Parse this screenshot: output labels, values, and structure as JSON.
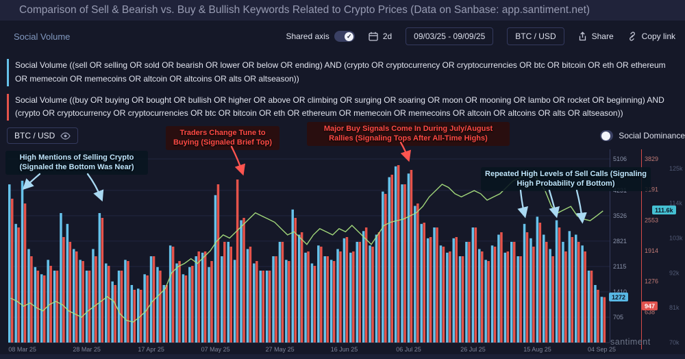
{
  "header": {
    "title": "Comparison of Sell & Bearish vs. Buy & Bullish Keywords Related to Crypto Prices (Data on Sanbase: app.santiment.net)"
  },
  "toolbar": {
    "metric_label": "Social Volume",
    "shared_axis_label": "Shared axis",
    "interval_label": "2d",
    "date_range": "09/03/25 - 09/09/25",
    "pair_label": "BTC / USD",
    "share_label": "Share",
    "copy_link_label": "Copy link"
  },
  "legend": {
    "sell": "Social Volume ((sell OR selling OR sold OR bearish OR lower OR below OR ending) AND (crypto OR cryptocurrency OR cryptocurrencies OR btc OR bitcoin OR eth OR ethereum OR memecoin OR memecoins OR altcoin OR altcoins OR alts OR altseason))",
    "buy": "Social Volume ((buy OR buying OR bought OR bullish OR higher OR above OR climbing OR surging OR soaring OR moon OR mooning OR lambo OR rocket OR beginning) AND (crypto OR cryptocurrency OR cryptocurrencies OR btc OR bitcoin OR eth OR ethereum OR memecoin OR memecoins OR altcoin OR altcoins OR alts OR altseason))"
  },
  "controls": {
    "asset_button": "BTC / USD",
    "social_dominance_label": "Social Dominance"
  },
  "annotations": [
    {
      "text": "High Mentions of Selling Crypto (Signaled the Bottom Was Near)",
      "color": "#bfe7ff"
    },
    {
      "text": "Traders Change Tune to Buying (Signaled Brief Top)",
      "color": "#ff4a44"
    },
    {
      "text": "Major Buy Signals Come In During July/August Rallies (Signaling Tops After All-Time Highs)",
      "color": "#ff4a44"
    },
    {
      "text": "Repeated High Levels of Sell Calls (Signaling High Probability of Bottom)",
      "color": "#bfe7ff"
    }
  ],
  "watermark": "santiment",
  "colors": {
    "background": "#151828",
    "header_background": "#20233a",
    "sell_series": "#66c2ea",
    "buy_series": "#e5534b",
    "price_line": "#a9e17e",
    "annotation_red": "#ff4a44",
    "annotation_blue": "#bfe7ff"
  },
  "chart_data": {
    "type": "bar",
    "title": "Sell & Bearish vs. Buy & Bullish social volume with BTC/USD price overlay",
    "x_tick_labels": [
      "08 Mar 25",
      "28 Mar 25",
      "17 Apr 25",
      "07 May 25",
      "27 May 25",
      "16 Jun 25",
      "06 Jul 25",
      "26 Jul 25",
      "15 Aug 25",
      "04 Sep 25"
    ],
    "interval": "2d",
    "sell_axis_ticks": [
      5106,
      4231,
      3526,
      2821,
      2115,
      1410,
      705
    ],
    "buy_axis_ticks": [
      3829,
      3191,
      2553,
      1914,
      1276,
      638
    ],
    "price_axis_ticks": [
      125,
      114,
      103,
      92,
      81,
      70
    ],
    "current_values": {
      "sell": "1272",
      "buy": "947",
      "price": "111.6k"
    },
    "series": [
      {
        "name": "Social Volume (sell & bearish keywords)",
        "type": "bar",
        "color": "#66c2ea",
        "axis_max": 5106,
        "values": [
          4400,
          3300,
          4500,
          2600,
          2100,
          1900,
          2300,
          2000,
          3600,
          3300,
          2600,
          2300,
          2000,
          2600,
          3600,
          2200,
          1700,
          2000,
          2300,
          1600,
          1500,
          1900,
          2400,
          2100,
          1600,
          2700,
          2200,
          1900,
          2100,
          2400,
          2500,
          2100,
          4100,
          2400,
          2800,
          2300,
          3400,
          2600,
          2200,
          2000,
          2000,
          2400,
          2800,
          2300,
          3700,
          3000,
          2500,
          2200,
          2700,
          2400,
          2300,
          2600,
          2900,
          2500,
          2800,
          3100,
          2700,
          3000,
          4200,
          4600,
          4900,
          4400,
          4700,
          3800,
          3300,
          2900,
          3200,
          2700,
          2500,
          2900,
          2400,
          2800,
          3200,
          2600,
          2300,
          2700,
          3000,
          2500,
          2800,
          2400,
          3300,
          2900,
          3500,
          3000,
          2600,
          3400,
          2800,
          3100,
          3000,
          2700,
          2000,
          1600,
          1272
        ]
      },
      {
        "name": "Social Volume (buy & bullish keywords)",
        "type": "bar",
        "color": "#e5534b",
        "axis_max": 3829,
        "values": [
          3000,
          2400,
          2900,
          1800,
          1500,
          1400,
          1600,
          1500,
          2200,
          2100,
          1900,
          1700,
          1500,
          1800,
          2600,
          1600,
          1200,
          1500,
          1700,
          1100,
          1100,
          1400,
          1800,
          1500,
          1200,
          2000,
          1700,
          1400,
          1600,
          1900,
          1900,
          1700,
          3300,
          2100,
          2000,
          3400,
          2600,
          2000,
          1700,
          1500,
          1500,
          1800,
          2100,
          1700,
          2600,
          2300,
          1900,
          1600,
          2000,
          1800,
          1700,
          1900,
          2200,
          1900,
          2100,
          2400,
          2000,
          2300,
          3100,
          3500,
          3700,
          3300,
          3600,
          2900,
          2500,
          2200,
          2400,
          2000,
          1900,
          2200,
          1800,
          2100,
          2400,
          1900,
          1700,
          2000,
          2300,
          1900,
          2100,
          1800,
          2300,
          2000,
          2500,
          2100,
          1800,
          2400,
          1900,
          2200,
          2100,
          1900,
          1500,
          1100,
          947
        ]
      },
      {
        "name": "BTC / USD price (thousands)",
        "type": "line",
        "color": "#a9e17e",
        "axis_min": 70,
        "axis_max": 128,
        "values": [
          84,
          83,
          81.5,
          82.5,
          81,
          80,
          82,
          83,
          82,
          80,
          79,
          78,
          80,
          81.5,
          83,
          84.5,
          83,
          79,
          77,
          76.5,
          78,
          80,
          83,
          85,
          87,
          92,
          94,
          95,
          96.5,
          95,
          97,
          99,
          102,
          104,
          103,
          105,
          107,
          109,
          111,
          110,
          109,
          108,
          106,
          104,
          105,
          103,
          101,
          104,
          106,
          105,
          104,
          106,
          105,
          107,
          105,
          103,
          101,
          104,
          107,
          108,
          108.5,
          109,
          110,
          111,
          113,
          116,
          118,
          120,
          119,
          117,
          116,
          117,
          118,
          117,
          115,
          116,
          117,
          119,
          121,
          122,
          123,
          124,
          121,
          118,
          113,
          111,
          112,
          113,
          110,
          109,
          108.5,
          110,
          111.6
        ]
      }
    ]
  }
}
